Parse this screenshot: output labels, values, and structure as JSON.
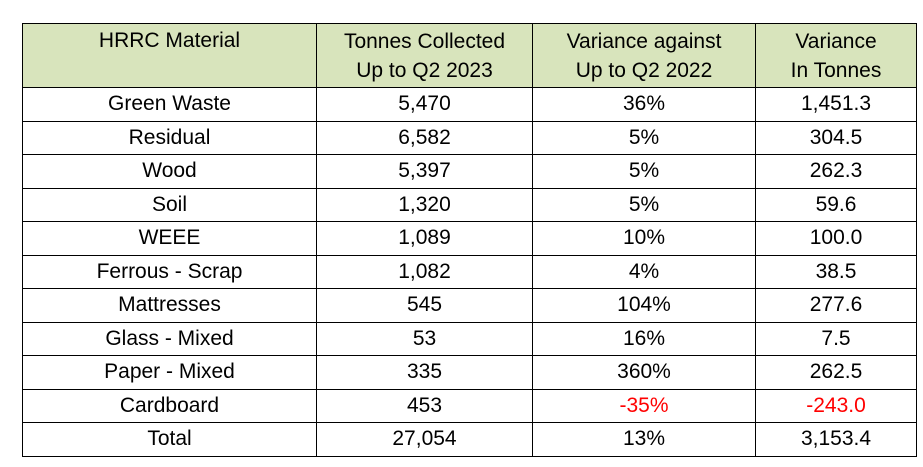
{
  "colors": {
    "header_bg": "#d8e4bc",
    "negative": "#ff0000",
    "border": "#000000"
  },
  "table": {
    "headers": [
      [
        "HRRC Material",
        ""
      ],
      [
        "Tonnes Collected",
        "Up to Q2 2023"
      ],
      [
        "Variance against",
        "Up to Q2 2022"
      ],
      [
        "Variance",
        "In Tonnes"
      ]
    ],
    "rows": [
      {
        "material": "Green Waste",
        "tonnes": "5,470",
        "variance_pct": "36%",
        "variance_tonnes": "1,451.3",
        "negative": false
      },
      {
        "material": "Residual",
        "tonnes": "6,582",
        "variance_pct": "5%",
        "variance_tonnes": "304.5",
        "negative": false
      },
      {
        "material": "Wood",
        "tonnes": "5,397",
        "variance_pct": "5%",
        "variance_tonnes": "262.3",
        "negative": false
      },
      {
        "material": "Soil",
        "tonnes": "1,320",
        "variance_pct": "5%",
        "variance_tonnes": "59.6",
        "negative": false
      },
      {
        "material": "WEEE",
        "tonnes": "1,089",
        "variance_pct": "10%",
        "variance_tonnes": "100.0",
        "negative": false
      },
      {
        "material": "Ferrous - Scrap",
        "tonnes": "1,082",
        "variance_pct": "4%",
        "variance_tonnes": "38.5",
        "negative": false
      },
      {
        "material": "Mattresses",
        "tonnes": "545",
        "variance_pct": "104%",
        "variance_tonnes": "277.6",
        "negative": false
      },
      {
        "material": "Glass - Mixed",
        "tonnes": "53",
        "variance_pct": "16%",
        "variance_tonnes": "7.5",
        "negative": false
      },
      {
        "material": "Paper - Mixed",
        "tonnes": "335",
        "variance_pct": "360%",
        "variance_tonnes": "262.5",
        "negative": false
      },
      {
        "material": "Cardboard",
        "tonnes": "453",
        "variance_pct": "-35%",
        "variance_tonnes": "-243.0",
        "negative": true
      },
      {
        "material": "Total",
        "tonnes": "27,054",
        "variance_pct": "13%",
        "variance_tonnes": "3,153.4",
        "negative": false
      }
    ]
  }
}
